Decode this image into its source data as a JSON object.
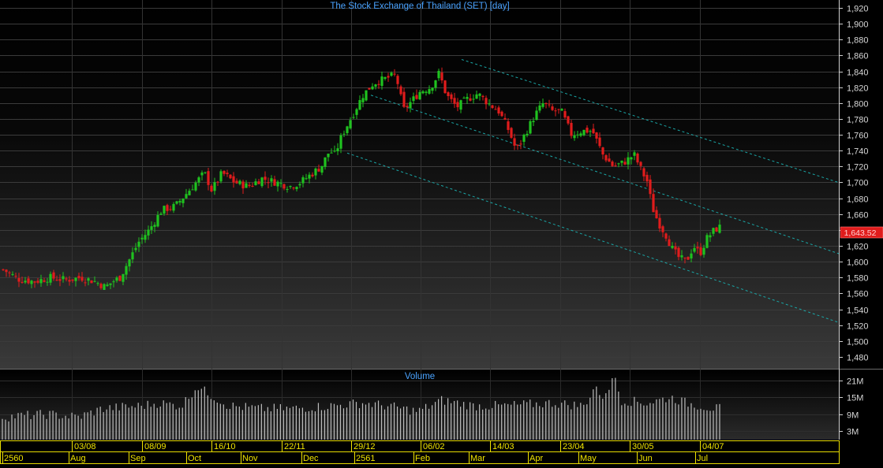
{
  "title": "The Stock Exchange of Thailand (SET) [day]",
  "volume_title": "Volume",
  "last_price_label": "1,643.52",
  "colors": {
    "up": "#1fc21f",
    "down": "#e01c1c",
    "title": "#4aa3ff",
    "axis_text": "#d8d8d8",
    "trendline": "#1aa6a6",
    "price_badge": "#e01c1c",
    "volume_bar": "#bdbdbd",
    "date_axis": "#f0e400"
  },
  "chart_data": [
    {
      "type": "candlestick",
      "title": "The Stock Exchange of Thailand (SET) [day]",
      "ylim": [
        1465,
        1930
      ],
      "y_ticks": [
        1480,
        1500,
        1520,
        1540,
        1560,
        1580,
        1600,
        1620,
        1640,
        1660,
        1680,
        1700,
        1720,
        1740,
        1760,
        1780,
        1800,
        1820,
        1840,
        1860,
        1880,
        1900,
        1920
      ],
      "y_tick_labels": [
        "1,480",
        "1,500",
        "1,520",
        "1,540",
        "1,560",
        "1,580",
        "1,600",
        "1,620",
        "1,640",
        "1,660",
        "1,680",
        "1,700",
        "1,720",
        "1,740",
        "1,760",
        "1,780",
        "1,800",
        "1,820",
        "1,840",
        "1,860",
        "1,880",
        "1,900",
        "1,920"
      ],
      "grid": true,
      "last_close": 1643.52,
      "close_path": [
        [
          0,
          1590
        ],
        [
          15,
          1578
        ],
        [
          30,
          1575
        ],
        [
          45,
          1580
        ],
        [
          60,
          1577
        ],
        [
          75,
          1580
        ],
        [
          88,
          1575
        ],
        [
          98,
          1568
        ],
        [
          105,
          1575
        ],
        [
          112,
          1580
        ],
        [
          120,
          1600
        ],
        [
          130,
          1625
        ],
        [
          140,
          1640
        ],
        [
          152,
          1665
        ],
        [
          165,
          1670
        ],
        [
          175,
          1685
        ],
        [
          185,
          1700
        ],
        [
          193,
          1712
        ],
        [
          200,
          1690
        ],
        [
          210,
          1712
        ],
        [
          222,
          1700
        ],
        [
          235,
          1695
        ],
        [
          248,
          1705
        ],
        [
          262,
          1700
        ],
        [
          275,
          1695
        ],
        [
          285,
          1700
        ],
        [
          295,
          1710
        ],
        [
          305,
          1720
        ],
        [
          313,
          1740
        ],
        [
          318,
          1735
        ],
        [
          325,
          1760
        ],
        [
          335,
          1785
        ],
        [
          345,
          1810
        ],
        [
          355,
          1825
        ],
        [
          365,
          1830
        ],
        [
          375,
          1835
        ],
        [
          380,
          1820
        ],
        [
          383,
          1790
        ],
        [
          390,
          1800
        ],
        [
          400,
          1815
        ],
        [
          410,
          1820
        ],
        [
          418,
          1838
        ],
        [
          425,
          1810
        ],
        [
          435,
          1795
        ],
        [
          445,
          1805
        ],
        [
          455,
          1812
        ],
        [
          465,
          1800
        ],
        [
          475,
          1790
        ],
        [
          485,
          1765
        ],
        [
          492,
          1740
        ],
        [
          500,
          1760
        ],
        [
          510,
          1785
        ],
        [
          518,
          1800
        ],
        [
          526,
          1790
        ],
        [
          535,
          1790
        ],
        [
          545,
          1760
        ],
        [
          555,
          1765
        ],
        [
          565,
          1765
        ],
        [
          575,
          1735
        ],
        [
          585,
          1720
        ],
        [
          595,
          1725
        ],
        [
          605,
          1735
        ],
        [
          612,
          1715
        ],
        [
          618,
          1700
        ],
        [
          622,
          1670
        ],
        [
          628,
          1650
        ],
        [
          635,
          1635
        ],
        [
          642,
          1615
        ],
        [
          648,
          1605
        ],
        [
          655,
          1600
        ],
        [
          662,
          1620
        ],
        [
          668,
          1610
        ],
        [
          675,
          1630
        ],
        [
          682,
          1640
        ],
        [
          687,
          1643.52
        ]
      ],
      "ohlc_note": "daily candles follow close_path with up/down alternation",
      "trendlines": [
        {
          "x": [
            585,
            1093
          ],
          "y": [
            1855,
            1690
          ]
        },
        {
          "x": [
            470,
            1093
          ],
          "y": [
            1810,
            1600
          ]
        },
        {
          "x": [
            440,
            1093
          ],
          "y": [
            1737,
            1513
          ]
        }
      ],
      "x_tick_labels": [
        "03/08",
        "08/09",
        "16/10",
        "22/11",
        "29/12",
        "06/02",
        "14/03",
        "23/04",
        "30/05",
        "04/07"
      ],
      "month_labels": [
        "2560",
        "Aug",
        "Sep",
        "Oct",
        "Nov",
        "Dec",
        "2561",
        "Feb",
        "Mar",
        "Apr",
        "May",
        "Jun",
        "Jul"
      ]
    },
    {
      "type": "bar",
      "title": "Volume",
      "y_ticks": [
        3,
        9,
        15,
        21
      ],
      "y_tick_labels": [
        "3M",
        "9M",
        "15M",
        "21M"
      ],
      "ylim": [
        0,
        24
      ],
      "unit": "M",
      "level_profile": [
        [
          0,
          8
        ],
        [
          60,
          9
        ],
        [
          100,
          8
        ],
        [
          130,
          11
        ],
        [
          180,
          12
        ],
        [
          200,
          13
        ],
        [
          230,
          12
        ],
        [
          250,
          19
        ],
        [
          260,
          17
        ],
        [
          290,
          12
        ],
        [
          330,
          11
        ],
        [
          370,
          11
        ],
        [
          420,
          12
        ],
        [
          460,
          13
        ],
        [
          490,
          12
        ],
        [
          530,
          10
        ],
        [
          560,
          14
        ],
        [
          600,
          12
        ],
        [
          640,
          12
        ],
        [
          700,
          13
        ],
        [
          740,
          12
        ],
        [
          757,
          20
        ],
        [
          760,
          14
        ],
        [
          782,
          23
        ],
        [
          785,
          14
        ],
        [
          820,
          13
        ],
        [
          850,
          15
        ],
        [
          870,
          13
        ],
        [
          905,
          11
        ]
      ]
    }
  ]
}
